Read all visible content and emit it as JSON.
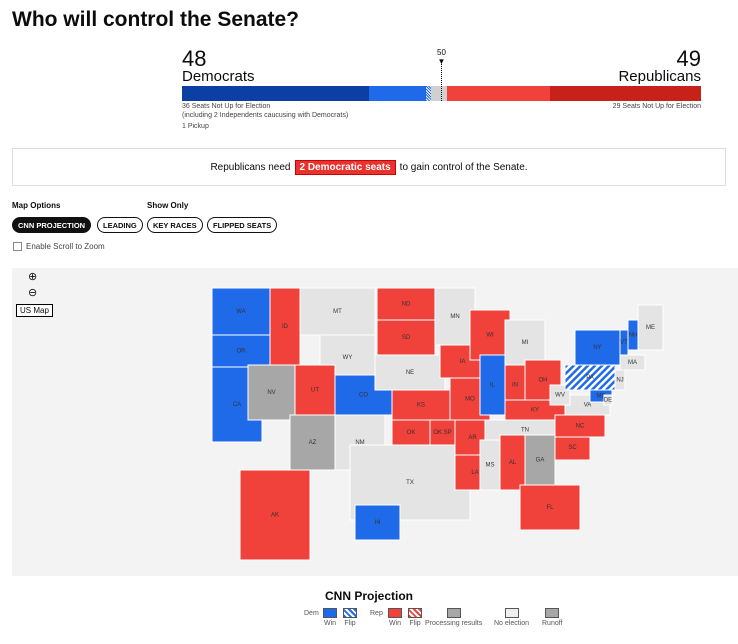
{
  "title": "Who will control the Senate?",
  "dem": {
    "seats": "48",
    "label": "Democrats",
    "not_up": "36 Seats Not Up for Election",
    "note": "(including 2 Independents caucusing with Democrats)",
    "pickups": "1 Pickup"
  },
  "rep": {
    "seats": "49",
    "label": "Republicans",
    "not_up": "29 Seats Not Up for Election"
  },
  "majority_marker": "50",
  "bar_segments_seats": {
    "dem_not_up": 36,
    "dem_won": 11,
    "dem_flip": 1,
    "undecided": 3,
    "rep_won": 20,
    "rep_not_up": 29
  },
  "control": {
    "before": "Republicans need",
    "badge": "2 Democratic seats",
    "after": "to gain control of the Senate."
  },
  "options": {
    "map_options_label": "Map Options",
    "show_only_label": "Show Only",
    "buttons": [
      "CNN PROJECTION",
      "LEADING",
      "KEY RACES",
      "FLIPPED SEATS"
    ],
    "active": "CNN PROJECTION",
    "scroll_zoom": "Enable Scroll to Zoom"
  },
  "map": {
    "zoom_in": "⊕",
    "zoom_out": "⊖",
    "reset": "US Map",
    "states": [
      {
        "id": "WA",
        "s": "dem"
      },
      {
        "id": "OR",
        "s": "dem"
      },
      {
        "id": "CA",
        "s": "dem"
      },
      {
        "id": "ID",
        "s": "rep"
      },
      {
        "id": "MT",
        "s": "none"
      },
      {
        "id": "WY",
        "s": "none"
      },
      {
        "id": "NV",
        "s": "proc"
      },
      {
        "id": "UT",
        "s": "rep"
      },
      {
        "id": "CO",
        "s": "dem"
      },
      {
        "id": "AZ",
        "s": "proc"
      },
      {
        "id": "NM",
        "s": "none"
      },
      {
        "id": "ND",
        "s": "rep"
      },
      {
        "id": "SD",
        "s": "rep"
      },
      {
        "id": "NE",
        "s": "none"
      },
      {
        "id": "KS",
        "s": "rep"
      },
      {
        "id": "OK",
        "s": "rep"
      },
      {
        "id": "OK SP",
        "s": "rep"
      },
      {
        "id": "TX",
        "s": "none"
      },
      {
        "id": "MN",
        "s": "none"
      },
      {
        "id": "IA",
        "s": "rep"
      },
      {
        "id": "MO",
        "s": "rep"
      },
      {
        "id": "AR",
        "s": "rep"
      },
      {
        "id": "LA",
        "s": "rep"
      },
      {
        "id": "WI",
        "s": "rep"
      },
      {
        "id": "IL",
        "s": "dem"
      },
      {
        "id": "MI",
        "s": "none"
      },
      {
        "id": "IN",
        "s": "rep"
      },
      {
        "id": "OH",
        "s": "rep"
      },
      {
        "id": "KY",
        "s": "rep"
      },
      {
        "id": "TN",
        "s": "none"
      },
      {
        "id": "MS",
        "s": "none"
      },
      {
        "id": "AL",
        "s": "rep"
      },
      {
        "id": "GA",
        "s": "runoff"
      },
      {
        "id": "FL",
        "s": "rep"
      },
      {
        "id": "SC",
        "s": "rep"
      },
      {
        "id": "NC",
        "s": "rep"
      },
      {
        "id": "VA",
        "s": "none"
      },
      {
        "id": "WV",
        "s": "none"
      },
      {
        "id": "PA",
        "s": "demflip"
      },
      {
        "id": "NY",
        "s": "dem"
      },
      {
        "id": "VT",
        "s": "dem"
      },
      {
        "id": "NH",
        "s": "dem"
      },
      {
        "id": "MA",
        "s": "none"
      },
      {
        "id": "ME",
        "s": "none"
      },
      {
        "id": "NJ",
        "s": "none"
      },
      {
        "id": "MD",
        "s": "dem"
      },
      {
        "id": "DE",
        "s": "none"
      },
      {
        "id": "AK",
        "s": "rep"
      },
      {
        "id": "HI",
        "s": "dem"
      }
    ]
  },
  "colors": {
    "dem": "#1f6ae8",
    "dem_dark": "#0c3ea3",
    "rep": "#f0413b",
    "rep_dark": "#c7221a",
    "proc": "#a7a7a7",
    "none": "#e4e4e4",
    "runoff": "#a7a7a7"
  },
  "legend": {
    "title": "CNN Projection",
    "dem": "Dem",
    "rep": "Rep",
    "win": "Win",
    "flip": "Flip",
    "processing": "Processing results",
    "no_election": "No election",
    "runoff": "Runoff"
  }
}
